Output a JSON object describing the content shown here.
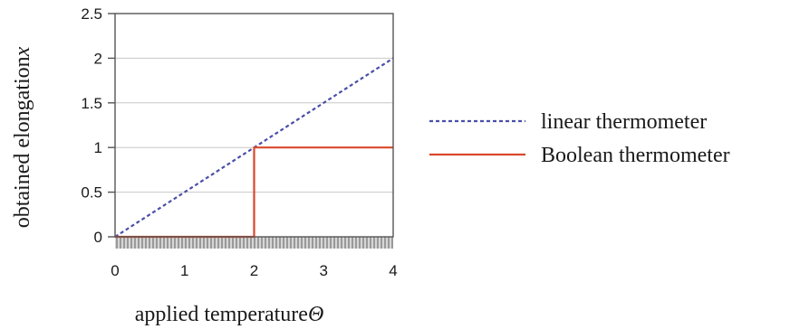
{
  "chart_data": {
    "type": "line",
    "xlabel": "applied temperature",
    "xlabel_symbol": "Θ",
    "ylabel": "obtained elongation",
    "ylabel_symbol": "x",
    "xlim": [
      0,
      4
    ],
    "ylim": [
      0,
      2.5
    ],
    "xticks": [
      "0",
      "1",
      "2",
      "3",
      "4"
    ],
    "yticks": [
      "0",
      "0.5",
      "1",
      "1.5",
      "2",
      "2.5"
    ],
    "grid": "horizontal",
    "legend_position": "right",
    "series": [
      {
        "name": "linear thermometer",
        "style": "dotted",
        "color": "#4a4fa8",
        "x": [
          0,
          4
        ],
        "y": [
          0,
          2
        ]
      },
      {
        "name": "Boolean thermometer",
        "style": "solid",
        "color": "#d9482b",
        "x": [
          0,
          2,
          2,
          4
        ],
        "y": [
          0,
          0,
          1,
          1
        ]
      }
    ]
  }
}
